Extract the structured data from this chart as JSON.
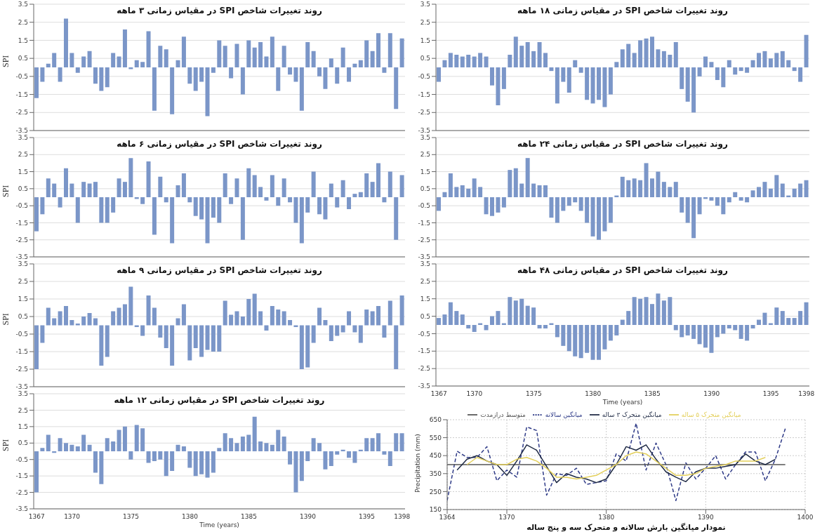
{
  "chart_data": [
    {
      "type": "bar",
      "title": "روند تغییرات شاخص SPI در مقیاس زمانی ۳ ماهه",
      "ylabel": "SPI",
      "color": "#7b96c8",
      "ylim": [
        -3.5,
        3.5
      ],
      "yticks": [
        -3.5,
        -2.5,
        -1.5,
        -0.5,
        0.5,
        1.5,
        2.5,
        3.5
      ],
      "grid": "y",
      "tick_labels": "y",
      "categories": [
        null,
        null,
        null,
        null,
        null,
        null,
        null,
        null,
        null,
        null,
        null,
        null,
        null,
        null,
        null,
        null,
        null,
        null,
        null,
        null,
        null,
        null,
        null,
        null,
        null,
        null,
        null,
        null,
        null,
        null,
        null,
        null,
        null,
        null,
        null,
        null,
        null,
        null,
        null,
        null,
        null,
        null,
        null,
        null,
        null,
        null,
        null,
        null,
        null,
        null,
        null,
        null,
        null,
        null,
        null,
        null,
        null,
        null,
        null,
        null,
        null,
        null,
        null
      ],
      "values": [
        -1.7,
        -0.8,
        0.2,
        0.8,
        -0.8,
        2.7,
        0.8,
        -0.3,
        0.6,
        0.9,
        -0.9,
        -1.3,
        -1.1,
        0.8,
        0.6,
        2.1,
        -0.1,
        0.4,
        0.3,
        2.0,
        -2.4,
        1.2,
        1.0,
        -2.6,
        0.4,
        1.7,
        -0.9,
        -1.3,
        -0.8,
        -2.7,
        -0.3,
        1.5,
        1.2,
        -0.6,
        1.3,
        -1.5,
        1.5,
        1.1,
        1.4,
        0.6,
        1.7,
        -1.3,
        1.2,
        -0.4,
        -0.8,
        -2.4,
        1.4,
        0.9,
        -0.5,
        -1.2,
        0.5,
        -0.9,
        1.1,
        -0.8,
        0.2,
        0.4,
        1.5,
        0.9,
        1.9,
        -0.3,
        1.9,
        -2.3,
        1.6
      ]
    },
    {
      "type": "bar",
      "title": "روند تغییرات شاخص SPI در مقیاس زمانی ۱۸ ماهه",
      "color": "#7b96c8",
      "ylim": [
        -3.5,
        3.5
      ],
      "yticks": [
        -3.5,
        -2.5,
        -1.5,
        -0.5,
        0.5,
        1.5,
        2.5,
        3.5
      ],
      "grid": "y",
      "tick_labels": "y",
      "categories": [
        null,
        null,
        null,
        null,
        null,
        null,
        null,
        null,
        null,
        null,
        null,
        null,
        null,
        null,
        null,
        null,
        null,
        null,
        null,
        null,
        null,
        null,
        null,
        null,
        null,
        null,
        null,
        null,
        null,
        null,
        null,
        null,
        null,
        null,
        null,
        null,
        null,
        null,
        null,
        null,
        null,
        null,
        null,
        null,
        null,
        null,
        null,
        null,
        null,
        null,
        null,
        null,
        null,
        null,
        null,
        null,
        null,
        null,
        null,
        null,
        null,
        null,
        null
      ],
      "values": [
        -0.8,
        0.4,
        0.8,
        0.7,
        0.6,
        0.7,
        0.6,
        0.8,
        0.6,
        -1.0,
        -2.1,
        -1.2,
        0.7,
        1.7,
        1.2,
        1.4,
        0.9,
        1.4,
        0.8,
        -0.2,
        -2.0,
        -0.8,
        -1.4,
        0.4,
        -0.3,
        -1.8,
        -2.0,
        -1.8,
        -2.2,
        -1.5,
        0.3,
        1.0,
        1.3,
        0.8,
        1.5,
        1.6,
        1.7,
        1.0,
        0.9,
        0.7,
        1.4,
        -1.2,
        -1.9,
        -2.5,
        -0.5,
        0.6,
        0.3,
        -0.7,
        -1.1,
        0.4,
        -0.4,
        -0.2,
        -0.3,
        0.4,
        0.8,
        0.9,
        0.5,
        0.8,
        0.9,
        0.4,
        -0.2,
        -0.8,
        1.8
      ]
    },
    {
      "type": "bar",
      "title": "روند تغییرات شاخص SPI در مقیاس زمانی ۶ ماهه",
      "ylabel": "SPI",
      "color": "#7b96c8",
      "ylim": [
        -3.5,
        3.5
      ],
      "yticks": [
        -3.5,
        -2.5,
        -1.5,
        -0.5,
        0.5,
        1.5,
        2.5,
        3.5
      ],
      "grid": "y",
      "tick_labels": "y",
      "categories": [
        null,
        null,
        null,
        null,
        null,
        null,
        null,
        null,
        null,
        null,
        null,
        null,
        null,
        null,
        null,
        null,
        null,
        null,
        null,
        null,
        null,
        null,
        null,
        null,
        null,
        null,
        null,
        null,
        null,
        null,
        null,
        null,
        null,
        null,
        null,
        null,
        null,
        null,
        null,
        null,
        null,
        null,
        null,
        null,
        null,
        null,
        null,
        null,
        null,
        null,
        null,
        null,
        null,
        null,
        null,
        null,
        null,
        null,
        null,
        null,
        null,
        null,
        null
      ],
      "values": [
        -2.0,
        -1.0,
        1.1,
        0.8,
        -0.6,
        1.7,
        0.8,
        -1.5,
        0.9,
        0.8,
        0.9,
        -1.5,
        -1.5,
        -0.9,
        1.1,
        0.9,
        2.3,
        -0.1,
        -0.4,
        2.1,
        -2.2,
        1.2,
        -0.3,
        -2.7,
        0.7,
        1.4,
        -0.3,
        -1.1,
        -1.3,
        -2.7,
        -1.2,
        -1.5,
        1.4,
        -0.4,
        1.1,
        -2.5,
        1.7,
        1.3,
        0.6,
        -0.2,
        1.3,
        -0.5,
        1.1,
        -0.3,
        -1.5,
        -2.7,
        -0.9,
        1.5,
        -1.0,
        -1.3,
        0.8,
        -0.6,
        1.0,
        -0.7,
        0.2,
        0.3,
        1.4,
        0.9,
        2.0,
        -0.3,
        1.5,
        -2.5,
        1.3
      ]
    },
    {
      "type": "bar",
      "title": "روند تغییرات شاخص SPI در مقیاس زمانی ۲۴ ماهه",
      "color": "#7b96c8",
      "ylim": [
        -3.5,
        3.5
      ],
      "yticks": [
        -3.5,
        -2.5,
        -1.5,
        -0.5,
        0.5,
        1.5,
        2.5,
        3.5
      ],
      "grid": "y",
      "tick_labels": "y",
      "categories": [
        null,
        null,
        null,
        null,
        null,
        null,
        null,
        null,
        null,
        null,
        null,
        null,
        null,
        null,
        null,
        null,
        null,
        null,
        null,
        null,
        null,
        null,
        null,
        null,
        null,
        null,
        null,
        null,
        null,
        null,
        null,
        null,
        null,
        null,
        null,
        null,
        null,
        null,
        null,
        null,
        null,
        null,
        null,
        null,
        null,
        null,
        null,
        null,
        null,
        null,
        null,
        null,
        null,
        null,
        null,
        null,
        null,
        null,
        null,
        null,
        null,
        null,
        null
      ],
      "values": [
        -0.8,
        0.3,
        1.4,
        0.6,
        0.7,
        0.5,
        1.1,
        0.6,
        -1.0,
        -1.1,
        -0.9,
        -0.6,
        1.6,
        1.7,
        0.8,
        2.3,
        0.8,
        0.7,
        0.7,
        -1.2,
        -1.5,
        -0.8,
        -0.5,
        -0.3,
        -0.8,
        -1.5,
        -2.3,
        -2.5,
        -2.0,
        -1.5,
        0.1,
        1.2,
        1.0,
        1.1,
        1.0,
        2.0,
        1.1,
        1.5,
        0.9,
        0.6,
        0.9,
        -0.9,
        -1.5,
        -2.4,
        -1.0,
        -0.1,
        -0.2,
        -0.5,
        -1.0,
        -0.3,
        0.3,
        -0.2,
        -0.3,
        0.4,
        0.6,
        0.9,
        0.5,
        1.3,
        0.8,
        0.1,
        0.5,
        0.8,
        1.0
      ]
    },
    {
      "type": "bar",
      "title": "روند تغییرات شاخص SPI در مقیاس زمانی ۹ ماهه",
      "ylabel": "SPI",
      "color": "#7b96c8",
      "ylim": [
        -3.5,
        3.5
      ],
      "yticks": [
        -3.5,
        -2.5,
        -1.5,
        -0.5,
        0.5,
        1.5,
        2.5,
        3.5
      ],
      "grid": "y",
      "tick_labels": "y",
      "categories": [
        null,
        null,
        null,
        null,
        null,
        null,
        null,
        null,
        null,
        null,
        null,
        null,
        null,
        null,
        null,
        null,
        null,
        null,
        null,
        null,
        null,
        null,
        null,
        null,
        null,
        null,
        null,
        null,
        null,
        null,
        null,
        null,
        null,
        null,
        null,
        null,
        null,
        null,
        null,
        null,
        null,
        null,
        null,
        null,
        null,
        null,
        null,
        null,
        null,
        null,
        null,
        null,
        null,
        null,
        null,
        null,
        null,
        null,
        null,
        null,
        null,
        null,
        null
      ],
      "values": [
        -2.5,
        -1.0,
        1.0,
        0.4,
        0.8,
        1.1,
        0.3,
        0.1,
        0.5,
        0.7,
        0.4,
        -2.3,
        -1.8,
        0.8,
        1.0,
        1.2,
        2.2,
        -0.1,
        -0.6,
        1.7,
        1.0,
        -0.7,
        -1.3,
        -2.3,
        0.4,
        1.2,
        -2.0,
        -1.3,
        -1.8,
        -1.4,
        -1.5,
        -1.5,
        1.4,
        0.6,
        0.8,
        0.5,
        1.5,
        1.8,
        0.8,
        -0.3,
        1.1,
        0.9,
        0.8,
        0.3,
        -0.1,
        -2.5,
        -2.4,
        -1.0,
        1.0,
        0.3,
        -0.9,
        -0.6,
        -0.4,
        0.8,
        -0.4,
        -1.0,
        0.9,
        0.8,
        1.1,
        -0.7,
        1.4,
        -2.5,
        1.7
      ]
    },
    {
      "type": "bar",
      "title": "روند تغییرات شاخص SPI در مقیاس زمانی ۴۸ ماهه",
      "xlabel": "Time (years)",
      "color": "#7b96c8",
      "ylim": [
        -3.5,
        3.5
      ],
      "yticks": [
        -3.5,
        -2.5,
        -1.5,
        -0.5,
        0.5,
        1.5,
        2.5,
        3.5
      ],
      "grid": "y",
      "categories": [
        "1367",
        null,
        null,
        null,
        null,
        null,
        "1370",
        null,
        null,
        null,
        null,
        null,
        null,
        null,
        null,
        null,
        "1375",
        null,
        null,
        null,
        null,
        null,
        null,
        null,
        null,
        null,
        "1380",
        null,
        null,
        null,
        null,
        null,
        null,
        null,
        null,
        null,
        "1385",
        null,
        null,
        null,
        null,
        null,
        null,
        null,
        null,
        null,
        "1390",
        null,
        null,
        null,
        null,
        null,
        null,
        null,
        null,
        null,
        "1395",
        null,
        null,
        null,
        null,
        null,
        "1398"
      ],
      "values": [
        0.4,
        0.6,
        1.3,
        0.8,
        0.6,
        -0.2,
        -0.4,
        0.1,
        -0.3,
        0.5,
        0.8,
        0.1,
        1.6,
        1.4,
        1.5,
        1.1,
        1.0,
        -0.2,
        -0.2,
        0.1,
        -0.7,
        -1.2,
        -1.5,
        -1.8,
        -1.9,
        -1.6,
        -2.0,
        -2.0,
        -1.4,
        -0.9,
        -0.6,
        0.3,
        0.8,
        1.6,
        1.5,
        1.6,
        1.2,
        1.8,
        1.4,
        1.6,
        -0.3,
        -0.7,
        -0.6,
        -0.8,
        -1.1,
        -1.3,
        -1.6,
        -0.7,
        -0.5,
        -0.2,
        -0.3,
        -0.8,
        -0.9,
        -0.2,
        0.3,
        0.7,
        0.1,
        1.0,
        0.8,
        0.4,
        0.4,
        0.8,
        1.3
      ]
    },
    {
      "type": "bar",
      "title": "روند تغییرات شاخص SPI در مقیاس زمانی ۱۲ ماهه",
      "ylabel": "SPI",
      "xlabel": "Time (years)",
      "color": "#7b96c8",
      "ylim": [
        -3.5,
        3.5
      ],
      "yticks": [
        -3.5,
        -2.5,
        -1.5,
        -0.5,
        0.5,
        1.5,
        2.5,
        3.5
      ],
      "grid": "y",
      "categories": [
        "1367",
        null,
        null,
        null,
        null,
        null,
        "1370",
        null,
        null,
        null,
        null,
        null,
        null,
        null,
        null,
        null,
        "1375",
        null,
        null,
        null,
        null,
        null,
        null,
        null,
        null,
        null,
        "1380",
        null,
        null,
        null,
        null,
        null,
        null,
        null,
        null,
        null,
        "1385",
        null,
        null,
        null,
        null,
        null,
        null,
        null,
        null,
        null,
        "1390",
        null,
        null,
        null,
        null,
        null,
        null,
        null,
        null,
        null,
        "1395",
        null,
        null,
        null,
        null,
        null,
        "1398"
      ],
      "values": [
        -2.5,
        0.2,
        1.0,
        -0.1,
        0.8,
        0.5,
        0.4,
        0.3,
        1.0,
        0.4,
        -1.3,
        -2.0,
        0.8,
        0.6,
        1.3,
        1.5,
        -0.5,
        1.6,
        1.4,
        -0.7,
        -0.6,
        -0.5,
        -1.5,
        -1.2,
        0.4,
        0.3,
        -1.0,
        -1.5,
        -1.4,
        -1.6,
        -1.3,
        0.2,
        1.1,
        0.8,
        0.5,
        0.9,
        1.0,
        2.1,
        0.6,
        0.5,
        0.4,
        1.3,
        0.9,
        -0.8,
        -2.5,
        -1.8,
        -0.6,
        0.8,
        0.5,
        -1.1,
        -0.9,
        -0.2,
        0.1,
        -0.4,
        -0.7,
        0.1,
        0.8,
        0.8,
        1.1,
        -0.2,
        -0.9,
        1.1,
        1.1
      ]
    },
    {
      "type": "line",
      "title": "نمودار میانگین بارش سالانه و متحرک سه و پنج ساله",
      "ylabel": "Precipitation (mm)",
      "xlim": [
        1364,
        1400
      ],
      "xticks": [
        1364,
        1370,
        1380,
        1390,
        1400
      ],
      "ylim": [
        150,
        650
      ],
      "yticks": [
        150,
        250,
        350,
        450,
        550,
        650
      ],
      "grid": true,
      "legend": "top",
      "marker": "none",
      "series": [
        {
          "name": "میانگین سالانه",
          "color": "#2e3a87",
          "line_style": "dashed",
          "x": [
            1364,
            1365,
            1366,
            1367,
            1368,
            1369,
            1370,
            1371,
            1372,
            1373,
            1374,
            1375,
            1376,
            1377,
            1378,
            1379,
            1380,
            1381,
            1382,
            1383,
            1384,
            1385,
            1386,
            1387,
            1388,
            1389,
            1390,
            1391,
            1392,
            1393,
            1394,
            1395,
            1396,
            1397,
            1398
          ],
          "values": [
            200,
            475,
            440,
            440,
            500,
            310,
            370,
            330,
            610,
            590,
            230,
            350,
            340,
            380,
            290,
            300,
            310,
            460,
            420,
            630,
            370,
            520,
            400,
            200,
            410,
            320,
            380,
            450,
            320,
            400,
            470,
            470,
            310,
            430,
            600
          ]
        },
        {
          "name": "متوسط درازمدت",
          "color": "#555555",
          "line_style": "solid",
          "x": [
            1364,
            1398
          ],
          "values": [
            400,
            400
          ]
        },
        {
          "name": "میانگین متحرک ۳ ساله",
          "color": "#1f2a44",
          "line_style": "solid",
          "x": [
            1365,
            1366,
            1367,
            1368,
            1369,
            1370,
            1371,
            1372,
            1373,
            1374,
            1375,
            1376,
            1377,
            1378,
            1379,
            1380,
            1381,
            1382,
            1383,
            1384,
            1385,
            1386,
            1387,
            1388,
            1389,
            1390,
            1391,
            1392,
            1393,
            1394,
            1395,
            1396,
            1397
          ],
          "values": [
            370,
            430,
            450,
            420,
            400,
            340,
            420,
            510,
            480,
            390,
            300,
            350,
            330,
            320,
            300,
            320,
            400,
            500,
            480,
            510,
            430,
            360,
            330,
            305,
            360,
            380,
            380,
            390,
            400,
            460,
            420,
            400,
            430
          ]
        },
        {
          "name": "میانگین متحرک ۵ ساله",
          "color": "#e3cf5a",
          "line_style": "solid",
          "x": [
            1366,
            1367,
            1368,
            1369,
            1370,
            1371,
            1372,
            1373,
            1374,
            1375,
            1376,
            1377,
            1378,
            1379,
            1380,
            1381,
            1382,
            1383,
            1384,
            1385,
            1386,
            1387,
            1388,
            1389,
            1390,
            1391,
            1392,
            1393,
            1394,
            1395,
            1396
          ],
          "values": [
            400,
            440,
            420,
            400,
            400,
            430,
            440,
            420,
            380,
            330,
            330,
            320,
            330,
            340,
            370,
            400,
            450,
            470,
            460,
            420,
            380,
            340,
            340,
            350,
            380,
            390,
            400,
            420,
            420,
            420,
            440
          ]
        }
      ]
    }
  ]
}
